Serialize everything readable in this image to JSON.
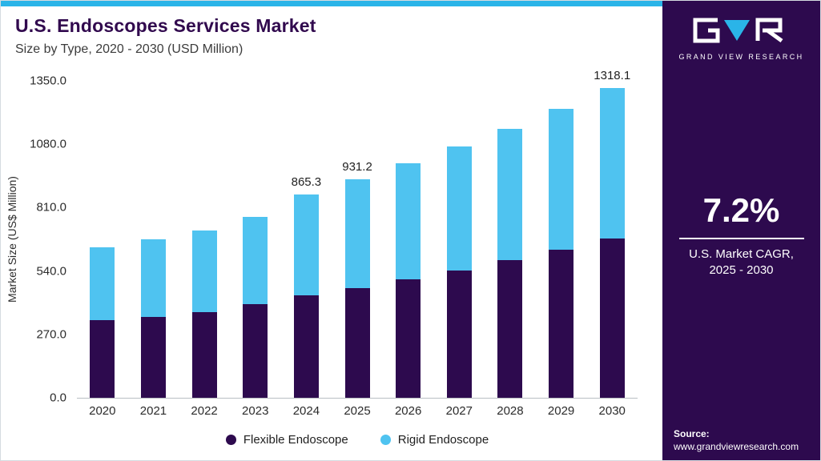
{
  "header": {
    "title": "U.S. Endoscopes Services Market",
    "subtitle": "Size by Type, 2020 - 2030 (USD Million)"
  },
  "chart_data": {
    "type": "bar",
    "stacked": true,
    "title": "U.S. Endoscopes Services Market Size by Type, 2020 - 2030 (USD Million)",
    "categories": [
      "2020",
      "2021",
      "2022",
      "2023",
      "2024",
      "2025",
      "2026",
      "2027",
      "2028",
      "2029",
      "2030"
    ],
    "series": [
      {
        "name": "Flexible Endoscope",
        "color": "#2d0a4e",
        "values": [
          330,
          345,
          365,
          400,
          435,
          467,
          503,
          543,
          588,
          632,
          680
        ]
      },
      {
        "name": "Rigid Endoscope",
        "color": "#4fc3f0",
        "values": [
          310,
          330,
          347,
          372,
          430.3,
          464.2,
          495.2,
          527.2,
          559.2,
          597.9,
          638.1
        ]
      }
    ],
    "totals": [
      640,
      675,
      712,
      772,
      865.3,
      931.2,
      998.2,
      1070.2,
      1147.2,
      1229.9,
      1318.1
    ],
    "total_labels": [
      null,
      null,
      null,
      null,
      "865.3",
      "931.2",
      null,
      null,
      null,
      null,
      "1318.1"
    ],
    "xlabel": "",
    "ylabel": "Market Size (US$ Million)",
    "ylim": [
      0,
      1350
    ],
    "yticks": [
      "0.0",
      "270.0",
      "540.0",
      "810.0",
      "1080.0",
      "1350.0"
    ],
    "grid": false,
    "legend_position": "bottom"
  },
  "sidebar": {
    "brand": "GRAND VIEW RESEARCH",
    "cagr_value": "7.2%",
    "cagr_caption_line1": "U.S. Market CAGR,",
    "cagr_caption_line2": "2025 - 2030",
    "source_label": "Source:",
    "source_url": "www.grandviewresearch.com"
  },
  "colors": {
    "accent_cyan": "#2ab4e8",
    "brand_purple": "#2d0a4e",
    "title_purple": "#31094e",
    "flexible_bar": "#2d0a4e",
    "rigid_bar": "#4fc3f0"
  }
}
